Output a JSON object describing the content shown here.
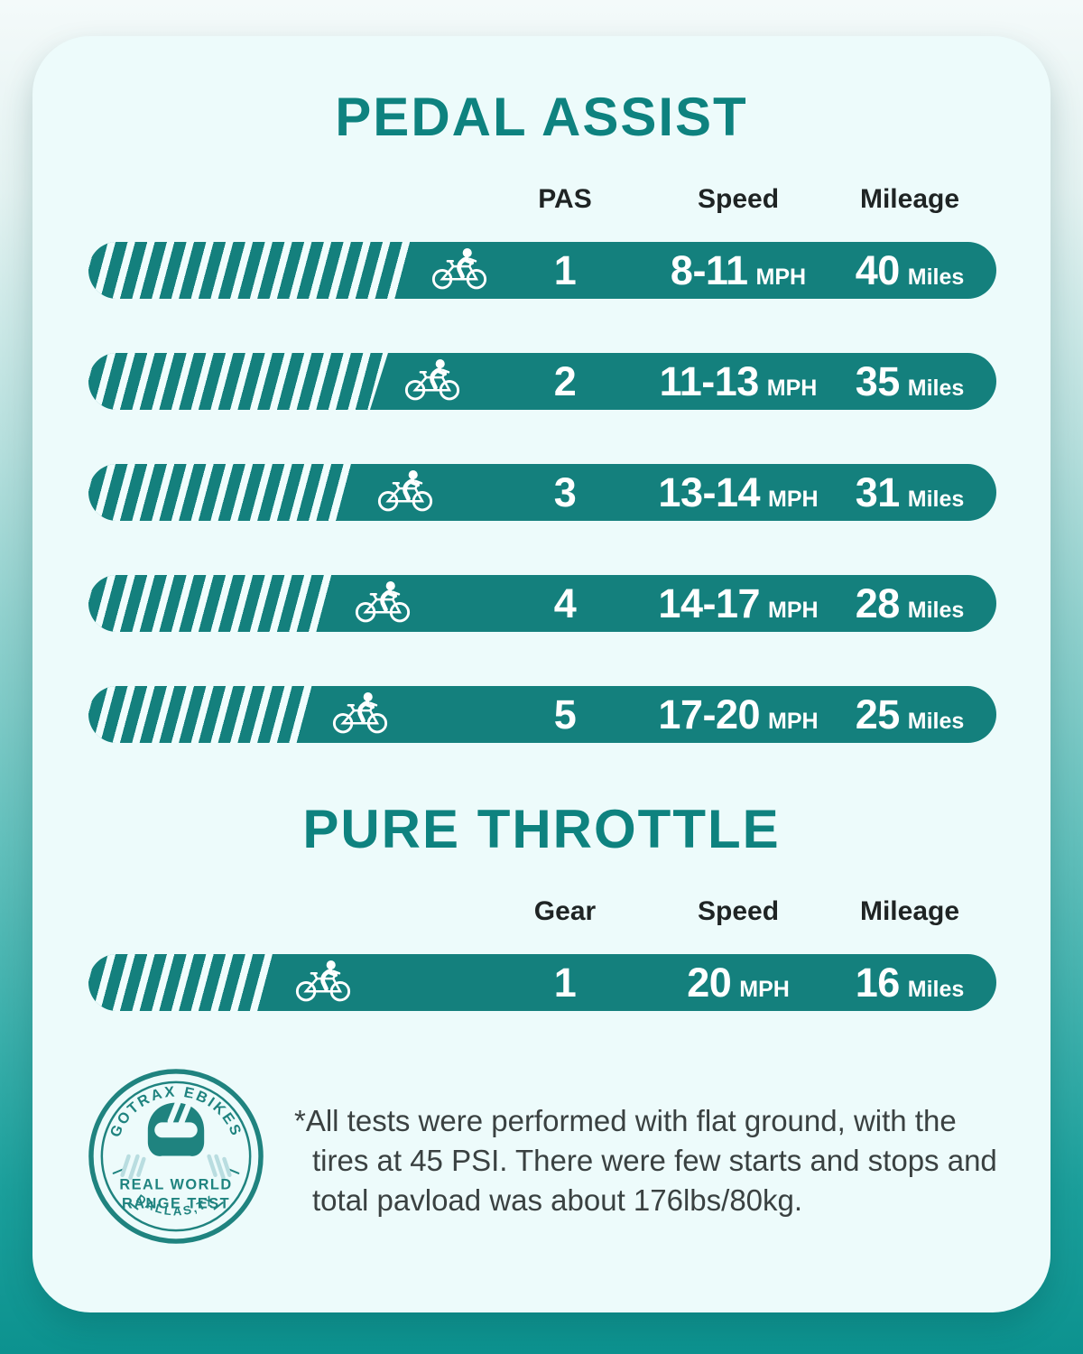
{
  "colors": {
    "brand_teal": "#0e827f",
    "bar_teal": "#14807d",
    "card_bg": "#edfbfb",
    "bg_gradient_top": "#f4fafa",
    "bg_gradient_bottom": "#0c928f",
    "header_text": "#1f2424",
    "bar_text": "#ffffff",
    "stamp_teal": "#1f837f",
    "speed_lines": "#b9dde0",
    "footnote_text": "#3a4141"
  },
  "pedal_assist": {
    "title": "PEDAL ASSIST",
    "headers": {
      "pas": "PAS",
      "speed": "Speed",
      "mileage": "Mileage"
    },
    "speed_unit": "MPH",
    "mileage_unit": "Miles",
    "rows": [
      {
        "pas": "1",
        "speed": "8-11",
        "mileage": "40",
        "fill_pct": 36
      },
      {
        "pas": "2",
        "speed": "11-13",
        "mileage": "35",
        "fill_pct": 33
      },
      {
        "pas": "3",
        "speed": "13-14",
        "mileage": "31",
        "fill_pct": 30
      },
      {
        "pas": "4",
        "speed": "14-17",
        "mileage": "28",
        "fill_pct": 27.5
      },
      {
        "pas": "5",
        "speed": "17-20",
        "mileage": "25",
        "fill_pct": 25
      }
    ]
  },
  "pure_throttle": {
    "title": "PURE THROTTLE",
    "headers": {
      "gear": "Gear",
      "speed": "Speed",
      "mileage": "Mileage"
    },
    "speed_unit": "MPH",
    "mileage_unit": "Miles",
    "rows": [
      {
        "gear": "1",
        "speed": "20",
        "mileage": "16",
        "fill_pct": 21
      }
    ]
  },
  "stamp": {
    "arc_top": "GOTRAX EBIKES",
    "center_line1": "REAL WORLD",
    "center_line2": "RANGE TEST",
    "arc_bottom": "DALLAS,TX"
  },
  "footnote": {
    "line1": "*All tests were performed with flat ground, with the",
    "line2": "tires at 45 PSI. There were few starts and stops and",
    "line3": "total pavload was about 176lbs/80kg."
  },
  "chart_data": [
    {
      "type": "bar",
      "title": "PEDAL ASSIST",
      "categories": [
        "PAS 1",
        "PAS 2",
        "PAS 3",
        "PAS 4",
        "PAS 5"
      ],
      "series": [
        {
          "name": "Speed (MPH)",
          "values": [
            "8-11",
            "11-13",
            "13-14",
            "14-17",
            "17-20"
          ]
        },
        {
          "name": "Mileage (Miles)",
          "values": [
            40,
            35,
            31,
            28,
            25
          ]
        },
        {
          "name": "Bar fill (%)",
          "values": [
            36,
            33,
            30,
            27.5,
            25
          ]
        }
      ],
      "xlabel": "PAS level",
      "ylabel": "",
      "legend_position": "none",
      "grid": false
    },
    {
      "type": "bar",
      "title": "PURE THROTTLE",
      "categories": [
        "Gear 1"
      ],
      "series": [
        {
          "name": "Speed (MPH)",
          "values": [
            20
          ]
        },
        {
          "name": "Mileage (Miles)",
          "values": [
            16
          ]
        },
        {
          "name": "Bar fill (%)",
          "values": [
            21
          ]
        }
      ],
      "xlabel": "Gear",
      "ylabel": "",
      "legend_position": "none",
      "grid": false
    }
  ]
}
